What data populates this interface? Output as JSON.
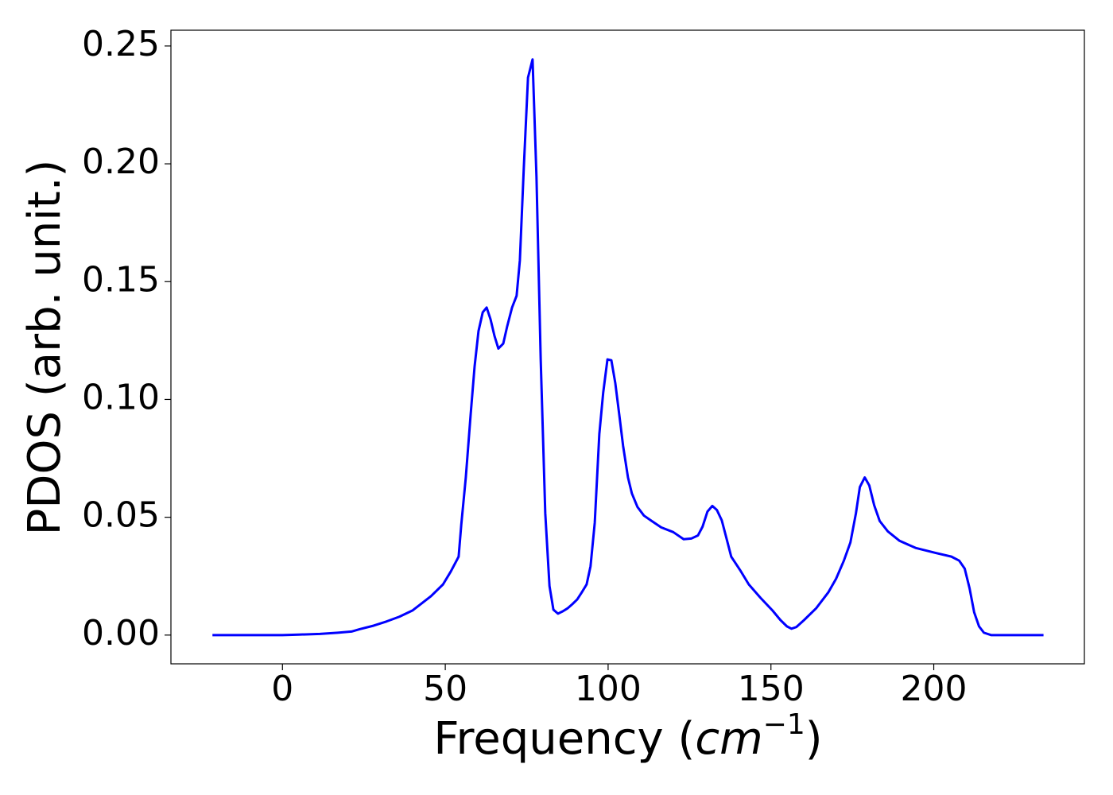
{
  "chart_data": {
    "type": "line",
    "x_label": [
      "Frequency (",
      "cm",
      "−1",
      ")"
    ],
    "y_label": "PDOS (arb. unit.)",
    "series": [
      {
        "color": "#0000ff",
        "x": [
          -21.5,
          -10,
          0,
          5,
          11.5,
          17,
          21.2,
          23.7,
          28,
          32,
          35.9,
          40,
          45.6,
          49.3,
          51.7,
          54.1,
          54.9,
          56.3,
          57.8,
          59.0,
          60.2,
          61.5,
          62.7,
          63.9,
          65.1,
          66.3,
          67.8,
          69.0,
          70.5,
          71.9,
          72.9,
          74.1,
          75.4,
          76.8,
          78.0,
          79.3,
          80.7,
          82.0,
          83.2,
          84.6,
          86.1,
          87.6,
          89.0,
          90.5,
          91.9,
          93.4,
          94.6,
          95.9,
          97.3,
          98.5,
          99.8,
          101.0,
          102.2,
          103.4,
          104.6,
          106.1,
          107.3,
          109.0,
          111.0,
          113.4,
          116.3,
          120.0,
          123.2,
          125.6,
          127.6,
          129.0,
          130.5,
          132.0,
          133.4,
          134.9,
          136.3,
          137.8,
          140.7,
          143.2,
          146.8,
          150.5,
          152.9,
          154.9,
          156.3,
          157.8,
          160.2,
          163.9,
          167.6,
          170.0,
          172.4,
          174.4,
          176.1,
          177.3,
          178.8,
          180.2,
          181.7,
          183.4,
          185.9,
          189.5,
          194.4,
          200.5,
          205.4,
          207.8,
          209.5,
          211.0,
          212.4,
          213.9,
          215.4,
          217.6,
          225,
          233.7
        ],
        "values": [
          0,
          0,
          0,
          0.0002,
          0.0005,
          0.001,
          0.0015,
          0.0025,
          0.004,
          0.0058,
          0.0078,
          0.0105,
          0.0165,
          0.0215,
          0.027,
          0.0333,
          0.0467,
          0.0669,
          0.0938,
          0.114,
          0.129,
          0.137,
          0.139,
          0.134,
          0.127,
          0.1216,
          0.1237,
          0.131,
          0.139,
          0.144,
          0.159,
          0.198,
          0.2366,
          0.2443,
          0.1946,
          0.117,
          0.0517,
          0.0208,
          0.0108,
          0.0091,
          0.0101,
          0.0114,
          0.0131,
          0.0151,
          0.0181,
          0.0215,
          0.0292,
          0.0477,
          0.0853,
          0.103,
          0.117,
          0.1166,
          0.107,
          0.0938,
          0.0803,
          0.0669,
          0.0601,
          0.0544,
          0.0507,
          0.0484,
          0.0457,
          0.0437,
          0.0407,
          0.041,
          0.0423,
          0.046,
          0.0524,
          0.0548,
          0.0531,
          0.0487,
          0.0413,
          0.0333,
          0.0272,
          0.0215,
          0.0158,
          0.0104,
          0.0064,
          0.0037,
          0.0027,
          0.0034,
          0.0064,
          0.0114,
          0.0181,
          0.0239,
          0.0316,
          0.0393,
          0.0517,
          0.0628,
          0.0669,
          0.0635,
          0.0551,
          0.0484,
          0.044,
          0.04,
          0.037,
          0.0349,
          0.0333,
          0.0316,
          0.0282,
          0.0198,
          0.0097,
          0.0037,
          0.001,
          0,
          0,
          0
        ]
      }
    ],
    "xlim": [
      -34.25,
      246.25
    ],
    "xticks": [
      0,
      50,
      100,
      150,
      200
    ],
    "ylim": [
      -0.0122,
      0.2567
    ],
    "yticks": [
      {
        "value": 0,
        "label": "0.00"
      },
      {
        "value": 0.05,
        "label": "0.05"
      },
      {
        "value": 0.1,
        "label": "0.10"
      },
      {
        "value": 0.15,
        "label": "0.15"
      },
      {
        "value": 0.2,
        "label": "0.20"
      },
      {
        "value": 0.25,
        "label": "0.25"
      }
    ],
    "grid": false
  }
}
